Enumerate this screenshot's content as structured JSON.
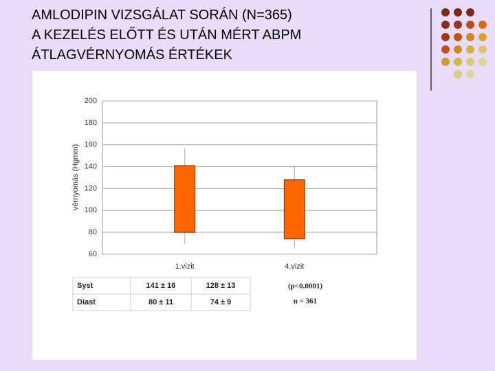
{
  "title_lines": [
    "AMLODIPIN VIZSGÁLAT SORÁN (N=365)",
    "A KEZELÉS ELŐTT ÉS UTÁN MÉRT ABPM",
    "ÁTLAGVÉRNYOMÁS ÉRTÉKEK"
  ],
  "chart_data": {
    "type": "floating-bar",
    "y_label": "vérnyomás (Hgmm)",
    "categories": [
      "1.vizit",
      "4.vizit"
    ],
    "series": [
      {
        "name": "Syst",
        "values": [
          141,
          128
        ],
        "errors": [
          16,
          13
        ]
      },
      {
        "name": "Diast",
        "values": [
          80,
          74
        ],
        "errors": [
          11,
          9
        ]
      }
    ],
    "color": "#ff6600",
    "ylim": [
      60,
      200
    ],
    "yticks": [
      60,
      80,
      100,
      120,
      140,
      160,
      180,
      200
    ],
    "grid": true
  },
  "table": {
    "rows": [
      [
        "141 ± 16",
        "128 ± 13"
      ],
      [
        "80 ± 11",
        "74 ± 9"
      ]
    ]
  },
  "notes": [
    "(p<0.0001)",
    "n = 361"
  ]
}
